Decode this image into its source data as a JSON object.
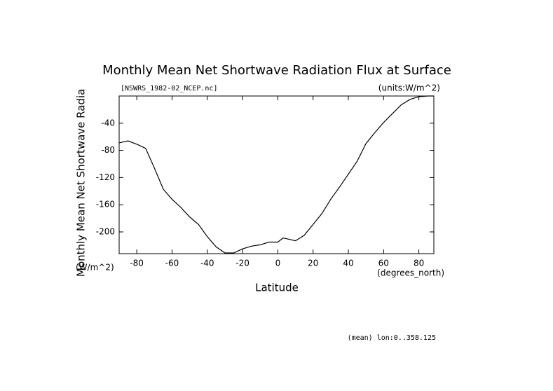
{
  "chart_data": {
    "type": "line",
    "title": "Monthly Mean Net Shortwave Radiation Flux at Surface",
    "subtitle": "[NSWRS_1982-02_NCEP.nc]",
    "units_label": "(units:W/m^2)",
    "y_label": "Monthly Mean Net Shortwave Radia",
    "y_units": "(W/m^2)",
    "x_label": "Latitude",
    "x_units": "(degrees_north)",
    "annotation": "(mean) lon:0..358.125",
    "x": [
      -90,
      -85,
      -80,
      -75,
      -70,
      -65,
      -60,
      -55,
      -50,
      -45,
      -40,
      -35,
      -30,
      -25,
      -20,
      -15,
      -10,
      -5,
      0,
      3,
      5,
      10,
      15,
      20,
      25,
      30,
      35,
      40,
      45,
      50,
      55,
      60,
      65,
      70,
      75,
      80,
      85,
      88.5
    ],
    "series": [
      {
        "name": "NSWRS",
        "color": "#000000",
        "values": [
          -69,
          -66,
          -71,
          -77,
          -106,
          -137,
          -152,
          -164,
          -178,
          -189,
          -207,
          -222,
          -231,
          -231,
          -225,
          -221,
          -219,
          -215,
          -215,
          -209,
          -210,
          -213,
          -205,
          -189,
          -173,
          -152,
          -134,
          -115,
          -96,
          -70,
          -54,
          -39,
          -26,
          -13,
          -5,
          -1,
          0,
          0
        ]
      }
    ],
    "xlim": [
      -90,
      88.5
    ],
    "xticks": [
      -80,
      -60,
      -40,
      -20,
      0,
      20,
      40,
      60,
      80
    ],
    "ylim": [
      -232,
      0
    ],
    "yticks": [
      -200,
      -160,
      -120,
      -80,
      -40
    ]
  }
}
